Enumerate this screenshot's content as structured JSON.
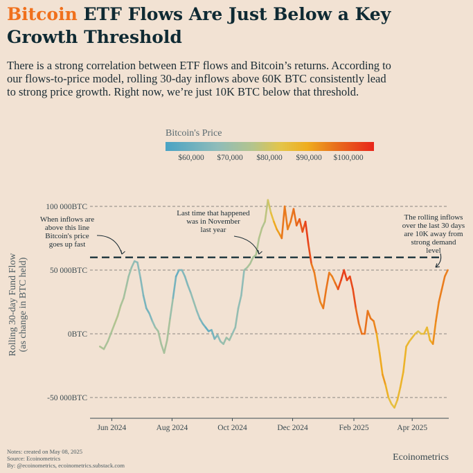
{
  "header": {
    "title_accent": "Bitcoin",
    "title_rest": " ETF Flows Are Just Below a Key Growth Threshold",
    "subtitle": "There is a strong correlation between ETF flows and Bitcoin’s returns. According to our flows-to-price model, rolling 30-day inflows above 60K BTC consistently lead to strong price growth. Right now, we’re just 10K BTC below that threshold."
  },
  "colors": {
    "accent": "#f0701c",
    "title": "#0f2a33",
    "background": "#f2e2d3",
    "threshold_line": "#0f2a33",
    "gradient": [
      "#4aa3c4",
      "#8fbcb9",
      "#b4c48c",
      "#e3c54a",
      "#efad1f",
      "#e86e1c",
      "#e8261b"
    ]
  },
  "legend": {
    "title": "Bitcoin's Price",
    "ticks": [
      "$60,000",
      "$70,000",
      "$80,000",
      "$90,000",
      "$100,000"
    ],
    "tick_values": [
      60000,
      70000,
      80000,
      90000,
      100000
    ],
    "price_range": [
      52000,
      107000
    ]
  },
  "chart_data": {
    "type": "line",
    "ylabel": "Rolling 30-day Fund Flow\n(as change in BTC held)",
    "ylim": [
      -70000,
      120000
    ],
    "xlim": [
      "2024-05-10",
      "2025-05-08"
    ],
    "y_ticks": [
      {
        "value": 100000,
        "label": "100 000BTC"
      },
      {
        "value": 50000,
        "label": "50 000BTC"
      },
      {
        "value": 0,
        "label": "0BTC"
      },
      {
        "value": -50000,
        "label": "-50 000BTC"
      }
    ],
    "x_ticks": [
      {
        "date": "2024-06-01",
        "label": "Jun 2024"
      },
      {
        "date": "2024-08-01",
        "label": "Aug 2024"
      },
      {
        "date": "2024-10-01",
        "label": "Oct 2024"
      },
      {
        "date": "2024-12-01",
        "label": "Dec 2024"
      },
      {
        "date": "2025-02-01",
        "label": "Feb 2025"
      },
      {
        "date": "2025-04-01",
        "label": "Apr 2025"
      }
    ],
    "grid": "horizontal dashed",
    "threshold": {
      "value": 60000,
      "style": "dashed"
    },
    "series": [
      {
        "x": [
          "2024-05-20",
          "2024-05-24",
          "2024-05-28",
          "2024-06-01",
          "2024-06-04",
          "2024-06-07",
          "2024-06-10",
          "2024-06-13",
          "2024-06-16",
          "2024-06-18",
          "2024-06-21",
          "2024-06-24",
          "2024-06-27",
          "2024-06-30",
          "2024-07-03",
          "2024-07-06",
          "2024-07-09",
          "2024-07-12",
          "2024-07-15",
          "2024-07-18",
          "2024-07-21",
          "2024-07-24",
          "2024-07-27",
          "2024-07-30",
          "2024-08-02",
          "2024-08-05",
          "2024-08-08",
          "2024-08-11",
          "2024-08-14",
          "2024-08-17",
          "2024-08-20",
          "2024-08-23",
          "2024-08-26",
          "2024-08-29",
          "2024-09-01",
          "2024-09-04",
          "2024-09-07",
          "2024-09-10",
          "2024-09-13",
          "2024-09-16",
          "2024-09-19",
          "2024-09-22",
          "2024-09-25",
          "2024-09-28",
          "2024-10-01",
          "2024-10-04",
          "2024-10-07",
          "2024-10-10",
          "2024-10-13",
          "2024-10-16",
          "2024-10-19",
          "2024-10-22",
          "2024-10-25",
          "2024-10-28",
          "2024-10-31",
          "2024-11-03",
          "2024-11-06",
          "2024-11-09",
          "2024-11-12",
          "2024-11-15",
          "2024-11-18",
          "2024-11-20",
          "2024-11-23",
          "2024-11-26",
          "2024-11-29",
          "2024-12-02",
          "2024-12-05",
          "2024-12-08",
          "2024-12-11",
          "2024-12-14",
          "2024-12-17",
          "2024-12-20",
          "2024-12-23",
          "2024-12-26",
          "2024-12-29",
          "2025-01-01",
          "2025-01-04",
          "2025-01-07",
          "2025-01-10",
          "2025-01-13",
          "2025-01-16",
          "2025-01-19",
          "2025-01-22",
          "2025-01-25",
          "2025-01-28",
          "2025-01-31",
          "2025-02-03",
          "2025-02-06",
          "2025-02-09",
          "2025-02-12",
          "2025-02-15",
          "2025-02-18",
          "2025-02-21",
          "2025-02-24",
          "2025-02-27",
          "2025-03-02",
          "2025-03-05",
          "2025-03-08",
          "2025-03-11",
          "2025-03-14",
          "2025-03-17",
          "2025-03-20",
          "2025-03-23",
          "2025-03-26",
          "2025-03-29",
          "2025-04-01",
          "2025-04-04",
          "2025-04-07",
          "2025-04-10",
          "2025-04-13",
          "2025-04-16",
          "2025-04-19",
          "2025-04-22",
          "2025-04-25",
          "2025-04-28",
          "2025-05-01",
          "2025-05-04",
          "2025-05-07"
        ],
        "y": [
          -10000,
          -12000,
          -6000,
          2000,
          8000,
          14000,
          22000,
          28000,
          38000,
          45000,
          52000,
          57000,
          56000,
          44000,
          30000,
          20000,
          16000,
          10000,
          5000,
          2000,
          -8000,
          -15000,
          -5000,
          12000,
          28000,
          45000,
          50000,
          50000,
          45000,
          38000,
          32000,
          25000,
          18000,
          12000,
          8000,
          5000,
          2000,
          3000,
          -4000,
          -1000,
          -6000,
          -8000,
          -3000,
          -5000,
          0,
          5000,
          20000,
          30000,
          50000,
          52000,
          55000,
          60000,
          62000,
          75000,
          83000,
          88000,
          105000,
          95000,
          88000,
          82000,
          78000,
          75000,
          100000,
          82000,
          88000,
          98000,
          85000,
          90000,
          80000,
          88000,
          70000,
          55000,
          48000,
          35000,
          25000,
          20000,
          35000,
          48000,
          45000,
          40000,
          35000,
          42000,
          50000,
          42000,
          45000,
          35000,
          20000,
          8000,
          0,
          0,
          18000,
          12000,
          10000,
          0,
          -15000,
          -32000,
          -40000,
          -50000,
          -55000,
          -58000,
          -52000,
          -42000,
          -30000,
          -10000,
          -6000,
          -3000,
          0,
          2000,
          0,
          0,
          5000,
          -5000,
          -8000,
          10000,
          25000,
          35000,
          45000,
          50000
        ],
        "price": [
          69000,
          68000,
          67500,
          68000,
          69500,
          70000,
          68500,
          67000,
          66000,
          65000,
          63500,
          61500,
          61000,
          60500,
          59000,
          57500,
          58000,
          60000,
          64000,
          66500,
          67000,
          66500,
          68000,
          66500,
          62000,
          54000,
          57500,
          60000,
          59500,
          59000,
          61000,
          63500,
          62500,
          59000,
          58000,
          56500,
          54500,
          57500,
          58000,
          59500,
          62500,
          63500,
          64000,
          65500,
          62000,
          62000,
          63500,
          60500,
          62500,
          67000,
          68500,
          67500,
          68000,
          70000,
          70500,
          68500,
          75500,
          76500,
          88000,
          90500,
          91000,
          94500,
          98500,
          93500,
          96500,
          97000,
          98000,
          100000,
          101000,
          101500,
          106000,
          97500,
          95000,
          96000,
          94000,
          95000,
          98000,
          96000,
          94500,
          96000,
          100000,
          104000,
          103000,
          104000,
          101000,
          104000,
          100000,
          97000,
          96500,
          97500,
          97000,
          95000,
          98000,
          91000,
          84500,
          94000,
          88500,
          86000,
          79000,
          82500,
          83000,
          86500,
          86000,
          87000,
          84000,
          83000,
          84500,
          77000,
          79500,
          84000,
          84000,
          85000,
          92000,
          94500,
          94500,
          96500,
          95000,
          96000
        ]
      }
    ]
  },
  "annotations": [
    {
      "text": "When inflows are\nabove this line\nBitcoin's price\ngoes up fast"
    },
    {
      "text": "Last time that happened\nwas in November\nlast year"
    },
    {
      "text": "The rolling inflows\nover the last 30 days\nare 10K away from\nstrong demand\nlevel"
    }
  ],
  "footer": {
    "notes": "Notes: created on May 08, 2025",
    "source": "Source: Ecoinometrics",
    "by": "By: @ecoinometrics, ecoinometrics.substack.com",
    "brand": "Ecoinometrics"
  }
}
